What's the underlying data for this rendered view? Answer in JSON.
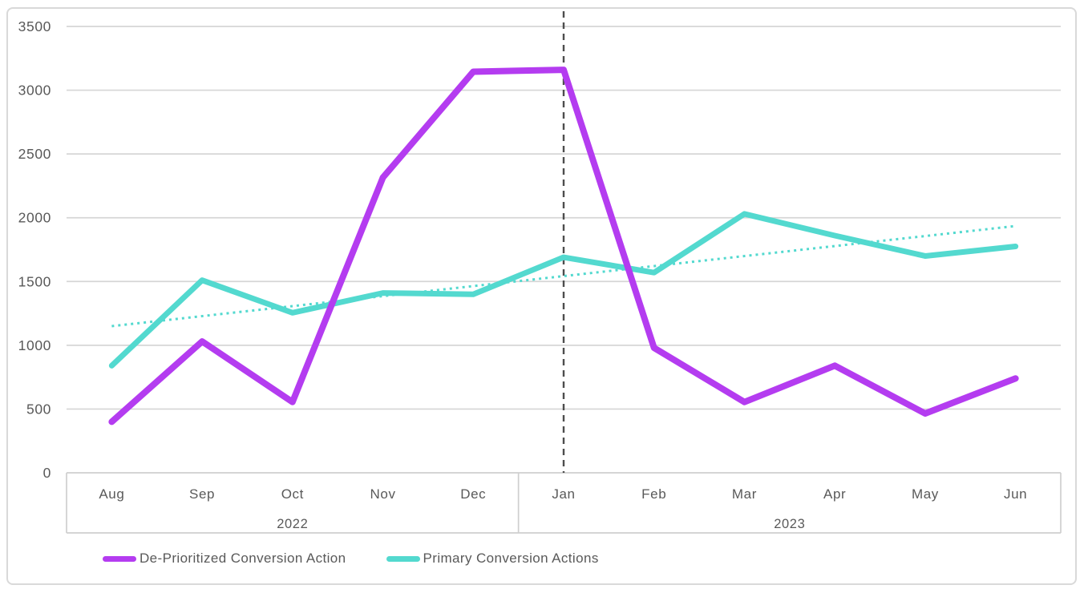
{
  "chart_data": {
    "type": "line",
    "title": "",
    "categories": [
      "Aug",
      "Sep",
      "Oct",
      "Nov",
      "Dec",
      "Jan",
      "Feb",
      "Mar",
      "Apr",
      "May",
      "Jun"
    ],
    "year_groups": [
      {
        "label": "2022",
        "months": [
          "Aug",
          "Sep",
          "Oct",
          "Nov",
          "Dec"
        ]
      },
      {
        "label": "2023",
        "months": [
          "Jan",
          "Feb",
          "Mar",
          "Apr",
          "May",
          "Jun"
        ]
      }
    ],
    "series": [
      {
        "name": "De-Prioritized Conversion Action",
        "color": "#b43cf0",
        "values": [
          400,
          1030,
          555,
          2315,
          3145,
          3160,
          980,
          555,
          840,
          465,
          740
        ]
      },
      {
        "name": "Primary Conversion Actions",
        "color": "#53d9cf",
        "values": [
          840,
          1510,
          1255,
          1410,
          1400,
          1690,
          1570,
          2030,
          1860,
          1700,
          1775
        ]
      }
    ],
    "trendline": {
      "for_series": "Primary Conversion Actions",
      "style": "dotted",
      "color": "#53d9cf",
      "y_start": 1150,
      "y_end": 1935
    },
    "annotation_line": {
      "x_category": "Jan",
      "style": "dashed",
      "color": "#4d4d4d"
    },
    "y_ticks": [
      0,
      500,
      1000,
      1500,
      2000,
      2500,
      3000,
      3500
    ],
    "ylim": [
      0,
      3500
    ],
    "xlabel": "",
    "ylabel": "",
    "grid": true,
    "legend_position": "bottom-left"
  },
  "colors": {
    "gridline": "#d6d6d6",
    "axis_border": "#cfcfcf",
    "label_text": "#595959",
    "card_border": "#d9d9d9"
  }
}
